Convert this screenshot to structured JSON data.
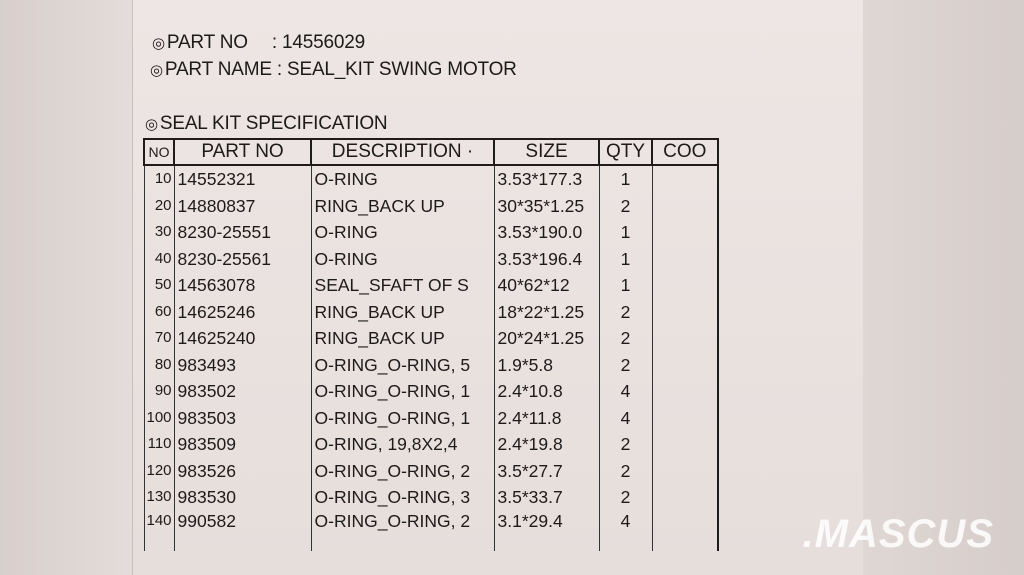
{
  "header": {
    "part_no_label": "PART NO",
    "part_no_value": ": 14556029",
    "part_name_label": "PART NAME",
    "part_name_value": ": SEAL_KIT SWING MOTOR",
    "spec_title": "SEAL KIT SPECIFICATION",
    "bullet_icon": "◎"
  },
  "table": {
    "columns": [
      "NO",
      "PART NO",
      "DESCRIPTION ·",
      "SIZE",
      "QTY",
      "COO"
    ],
    "rows": [
      {
        "no": "10",
        "part_no": "14552321",
        "description": "O-RING",
        "size": "3.53*177.3",
        "qty": "1",
        "coo": ""
      },
      {
        "no": "20",
        "part_no": "14880837",
        "description": "RING_BACK UP",
        "size": "30*35*1.25",
        "qty": "2",
        "coo": ""
      },
      {
        "no": "30",
        "part_no": "8230-25551",
        "description": "O-RING",
        "size": "3.53*190.0",
        "qty": "1",
        "coo": ""
      },
      {
        "no": "40",
        "part_no": "8230-25561",
        "description": "O-RING",
        "size": "3.53*196.4",
        "qty": "1",
        "coo": ""
      },
      {
        "no": "50",
        "part_no": "14563078",
        "description": "SEAL_SFAFT OF S",
        "size": "40*62*12",
        "qty": "1",
        "coo": ""
      },
      {
        "no": "60",
        "part_no": "14625246",
        "description": "RING_BACK UP",
        "size": "18*22*1.25",
        "qty": "2",
        "coo": ""
      },
      {
        "no": "70",
        "part_no": "14625240",
        "description": "RING_BACK UP",
        "size": "20*24*1.25",
        "qty": "2",
        "coo": ""
      },
      {
        "no": "80",
        "part_no": "983493",
        "description": "O-RING_O-RING, 5",
        "size": "1.9*5.8",
        "qty": "2",
        "coo": ""
      },
      {
        "no": "90",
        "part_no": "983502",
        "description": "O-RING_O-RING, 1",
        "size": "2.4*10.8",
        "qty": "4",
        "coo": ""
      },
      {
        "no": "100",
        "part_no": "983503",
        "description": "O-RING_O-RING, 1",
        "size": "2.4*11.8",
        "qty": "4",
        "coo": ""
      },
      {
        "no": "110",
        "part_no": "983509",
        "description": "O-RING, 19,8X2,4",
        "size": "2.4*19.8",
        "qty": "2",
        "coo": ""
      },
      {
        "no": "120",
        "part_no": "983526",
        "description": "O-RING_O-RING, 2",
        "size": "3.5*27.7",
        "qty": "2",
        "coo": ""
      },
      {
        "no": "130",
        "part_no": "983530",
        "description": "O-RING_O-RING, 3",
        "size": "3.5*33.7",
        "qty": "2",
        "coo": ""
      },
      {
        "no": "140",
        "part_no": "990582",
        "description": "O-RING_O-RING, 2",
        "size": "3.1*29.4",
        "qty": "4",
        "coo": ""
      }
    ]
  },
  "watermark": ".MASCUS"
}
